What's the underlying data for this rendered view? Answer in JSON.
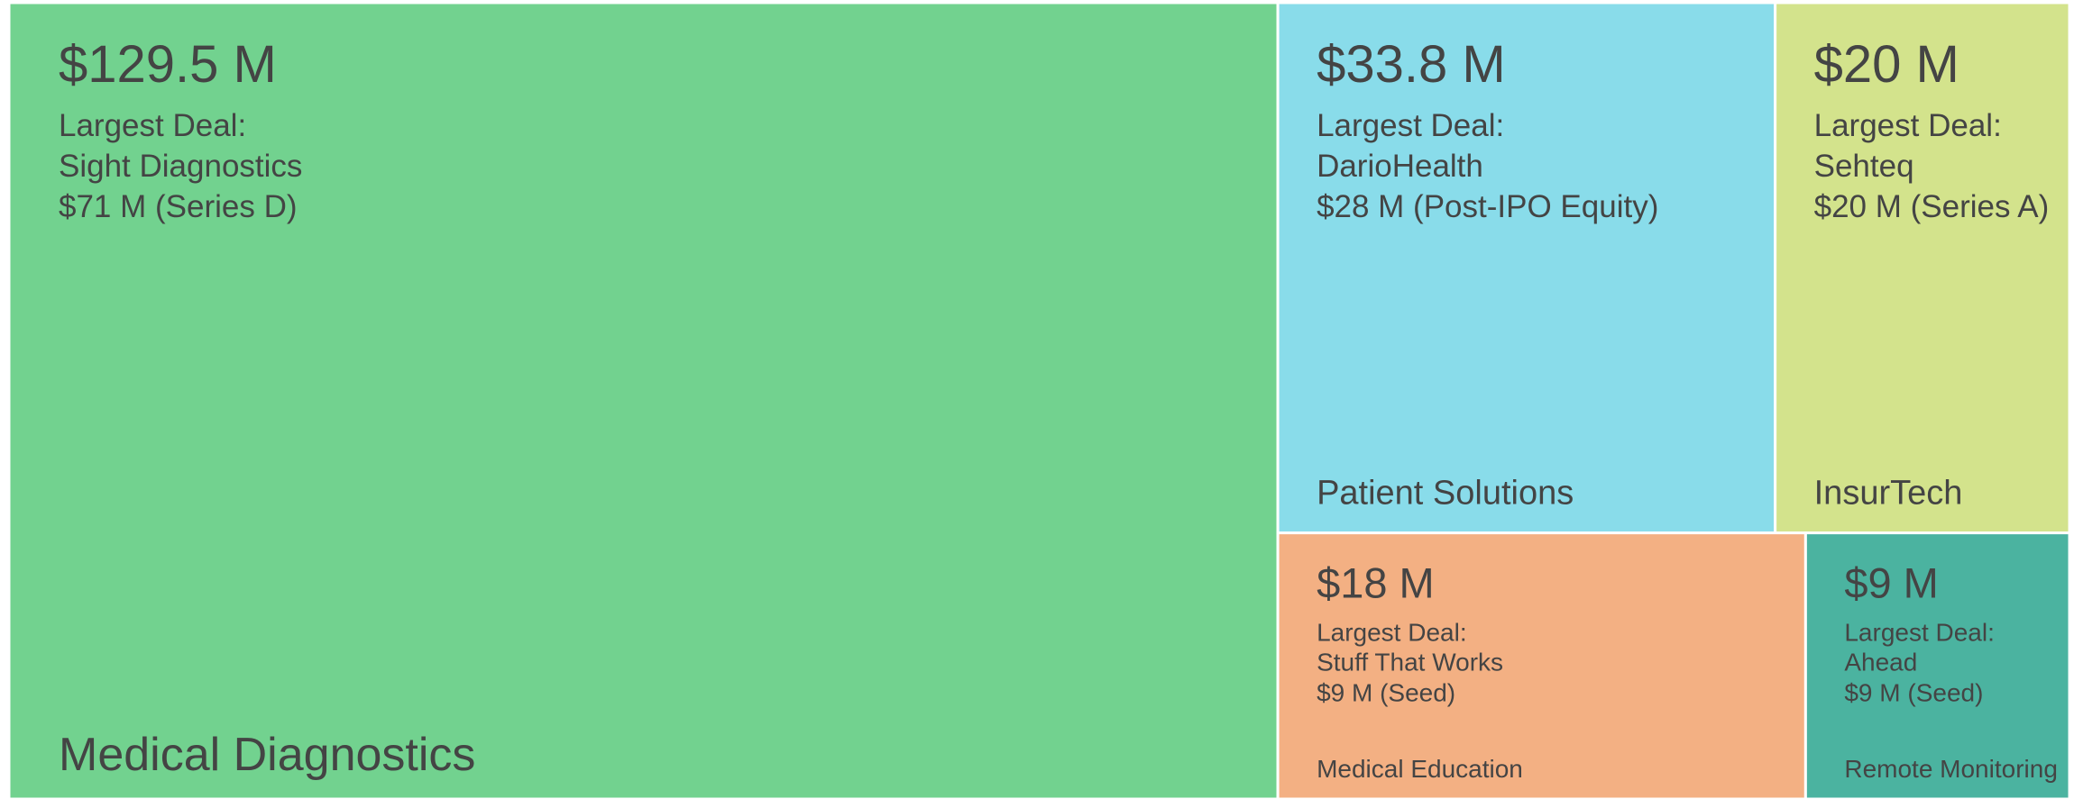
{
  "chart_data": {
    "type": "treemap",
    "categories": [
      "Medical Diagnostics",
      "Patient Solutions",
      "InsurTech",
      "Medical Education",
      "Remote Monitoring"
    ],
    "values": [
      129.5,
      33.8,
      20,
      18,
      9
    ],
    "value_labels": [
      "$129.5 M",
      "$33.8 M",
      "$20 M",
      "$18 M",
      "$9 M"
    ],
    "colors": [
      "#72d28f",
      "#89dcea",
      "#d3e38c",
      "#f3b083",
      "#4bb3a0"
    ],
    "details": [
      {
        "label": "Largest Deal:",
        "company": "Sight Diagnostics",
        "deal": "$71 M (Series D)"
      },
      {
        "label": "Largest Deal:",
        "company": "DarioHealth",
        "deal": "$28 M (Post-IPO Equity)"
      },
      {
        "label": "Largest Deal:",
        "company": "Sehteq",
        "deal": "$20 M (Series A)"
      },
      {
        "label": "Largest Deal:",
        "company": "Stuff That Works",
        "deal": "$9 M (Seed)"
      },
      {
        "label": "Largest Deal:",
        "company": "Ahead",
        "deal": "$9 M (Seed)"
      }
    ]
  }
}
